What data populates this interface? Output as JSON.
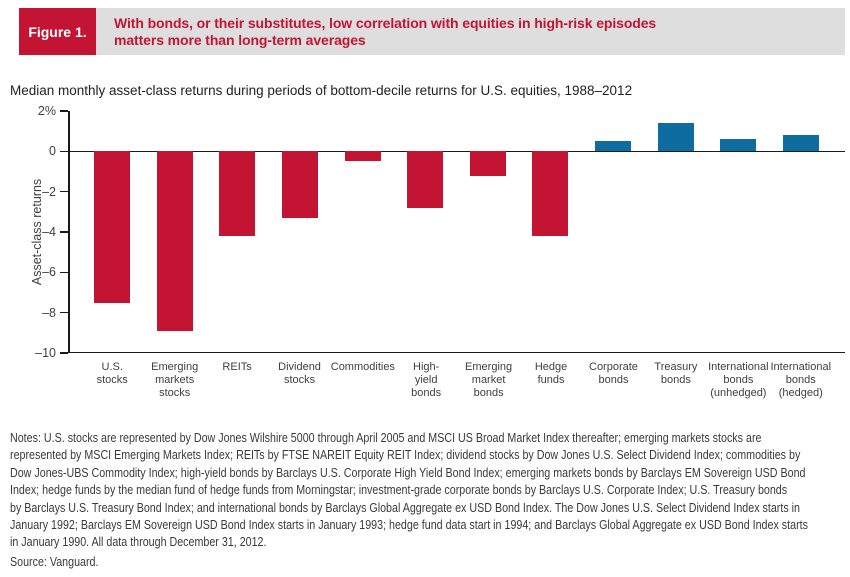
{
  "banner": {
    "figure_label": "Figure 1.",
    "title_line1": "With bonds, or their substitutes, low correlation with equities in high-risk episodes",
    "title_line2": "matters more than long-term averages"
  },
  "chart": {
    "subtitle": "Median monthly asset-class returns during periods of bottom-decile returns for U.S. equities, 1988–2012",
    "y_axis_title": "Asset-class returns"
  },
  "chart_data": {
    "type": "bar",
    "title": "Median monthly asset-class returns during periods of bottom-decile returns for U.S. equities, 1988–2012",
    "xlabel": "",
    "ylabel": "Asset-class returns",
    "ylim": [
      -10,
      2
    ],
    "grid": false,
    "legend": "none",
    "yticks": [
      {
        "value": 2,
        "label": "2%"
      },
      {
        "value": 0,
        "label": "0"
      },
      {
        "value": -2,
        "label": "–2"
      },
      {
        "value": -4,
        "label": "–4"
      },
      {
        "value": -6,
        "label": "–6"
      },
      {
        "value": -8,
        "label": "–8"
      },
      {
        "value": -10,
        "label": "–10"
      }
    ],
    "categories": [
      "U.S. stocks",
      "Emerging markets stocks",
      "REITs",
      "Dividend stocks",
      "Commodities",
      "High-yield bonds",
      "Emerging market bonds",
      "Hedge funds",
      "Corporate bonds",
      "Treasury bonds",
      "International bonds (unhedged)",
      "International bonds (hedged)"
    ],
    "category_lines": [
      [
        "U.S.",
        "stocks"
      ],
      [
        "Emerging",
        "markets",
        "stocks"
      ],
      [
        "REITs"
      ],
      [
        "Dividend",
        "stocks"
      ],
      [
        "Commodities"
      ],
      [
        "High-",
        "yield",
        "bonds"
      ],
      [
        "Emerging",
        "market",
        "bonds"
      ],
      [
        "Hedge",
        "funds"
      ],
      [
        "Corporate",
        "bonds"
      ],
      [
        "Treasury",
        "bonds"
      ],
      [
        "International",
        "bonds",
        "(unhedged)"
      ],
      [
        "International",
        "bonds",
        "(hedged)"
      ]
    ],
    "values": [
      -7.5,
      -8.9,
      -4.2,
      -3.3,
      -0.5,
      -2.8,
      -1.2,
      -4.2,
      0.5,
      1.4,
      0.6,
      0.8
    ],
    "colors": {
      "negative": "#c41433",
      "positive": "#0e6ca0"
    }
  },
  "colors": {
    "banner_background": "#dedede",
    "accent_red": "#c41433",
    "bar_negative": "#c41433",
    "bar_positive": "#0e6ca0"
  },
  "notes": {
    "lines": [
      "Notes: U.S. stocks are represented by Dow Jones Wilshire 5000 through April 2005 and MSCI US Broad Market Index thereafter; emerging markets stocks are",
      "represented by MSCI Emerging Markets Index; REITs by FTSE NAREIT Equity REIT Index; dividend stocks by Dow Jones U.S. Select Dividend Index; commodities by",
      "Dow Jones-UBS Commodity Index; high-yield bonds by Barclays U.S. Corporate High Yield Bond Index; emerging markets bonds by Barclays EM Sovereign USD Bond",
      "Index; hedge funds by the median fund of hedge funds from Morningstar; investment-grade corporate bonds by Barclays U.S. Corporate Index; U.S. Treasury bonds",
      "by Barclays U.S. Treasury Bond Index; and international bonds by Barclays Global Aggregate ex USD Bond Index. The Dow Jones U.S. Select Dividend Index starts in",
      "January 1992; Barclays EM Sovereign USD Bond Index starts in January 1993; hedge fund data start in 1994; and Barclays Global Aggregate ex USD Bond Index starts",
      "in January 1990. All data through December 31, 2012."
    ],
    "source": "Source: Vanguard."
  }
}
